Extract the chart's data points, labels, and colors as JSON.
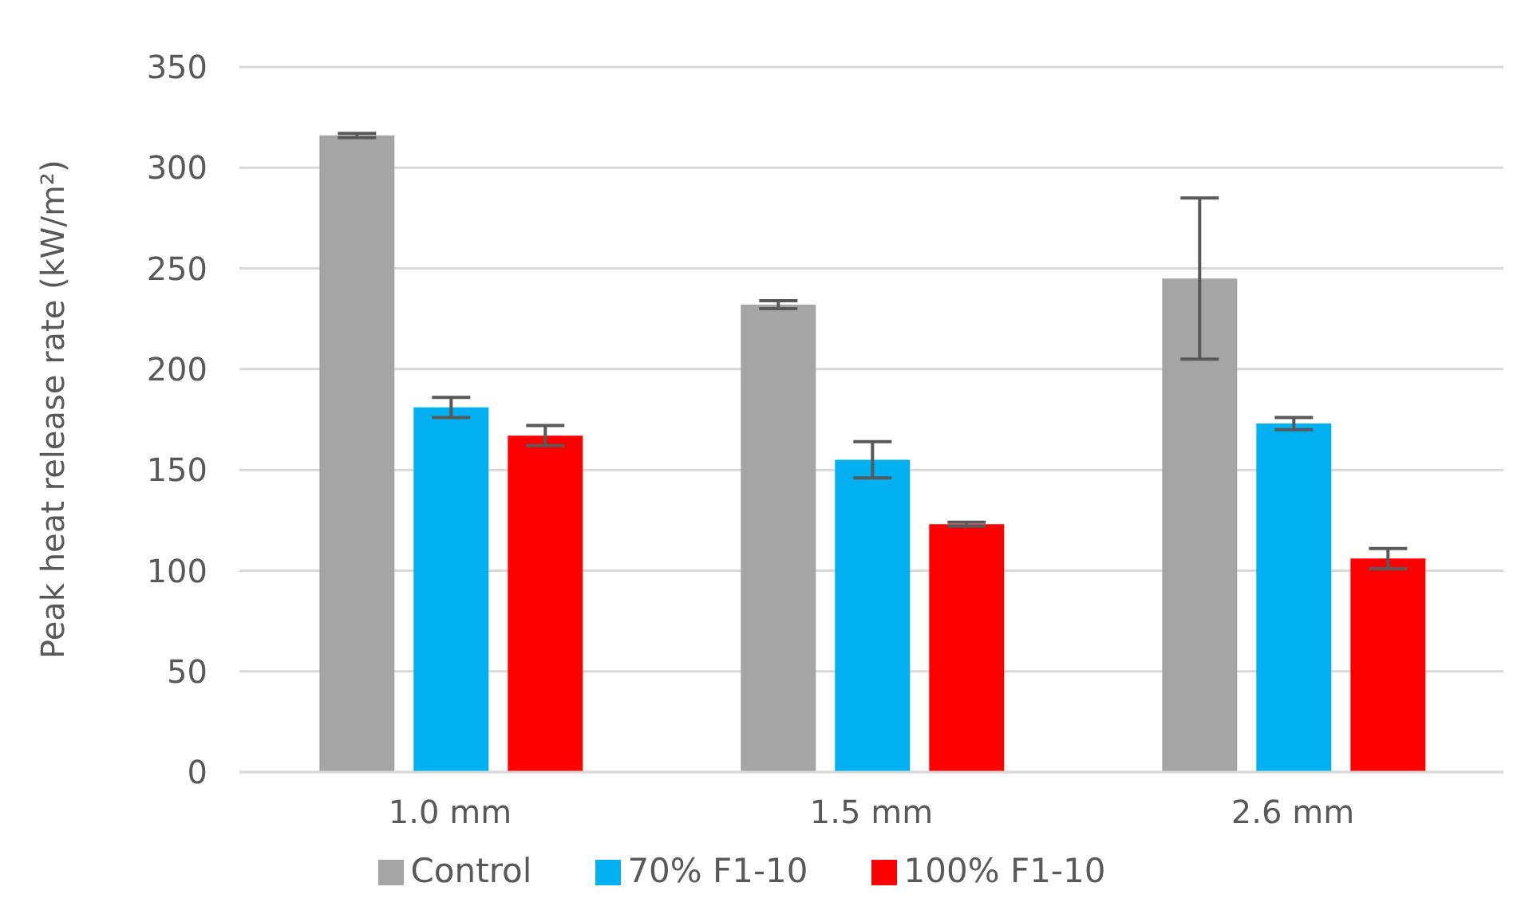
{
  "chart_data": {
    "type": "bar",
    "ylabel": "Peak heat release rate (kW/m²)",
    "categories": [
      "1.0 mm",
      "1.5 mm",
      "2.6 mm"
    ],
    "series": [
      {
        "name": "Control",
        "color": "#a5a5a5",
        "values": [
          316,
          232,
          245
        ],
        "errors": [
          1,
          2,
          40
        ]
      },
      {
        "name": "70% F1-10",
        "color": "#00b0f0",
        "values": [
          181,
          155,
          173
        ],
        "errors": [
          5,
          9,
          3
        ]
      },
      {
        "name": "100% F1-10",
        "color": "#ff0000",
        "values": [
          167,
          123,
          106
        ],
        "errors": [
          5,
          1,
          5
        ]
      }
    ],
    "ylim": [
      0,
      350
    ],
    "yticks": [
      0,
      50,
      100,
      150,
      200,
      250,
      300,
      350
    ],
    "grid": "y",
    "legend": "bottom"
  }
}
